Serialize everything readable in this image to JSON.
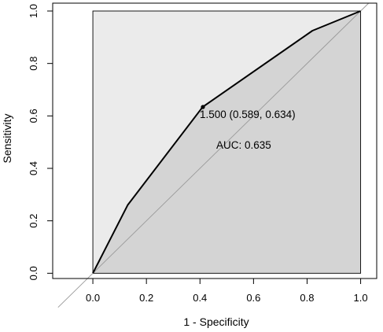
{
  "chart_data": {
    "type": "line",
    "title": "",
    "xlabel": "1 - Specificity",
    "ylabel": "Sensitivity",
    "xlim": [
      -0.15,
      1.06
    ],
    "ylim": [
      -0.02,
      1.03
    ],
    "x_ticks": [
      0.0,
      0.2,
      0.4,
      0.6,
      0.8,
      1.0
    ],
    "y_ticks": [
      0.0,
      0.2,
      0.4,
      0.6,
      0.8,
      1.0
    ],
    "x_tick_labels": [
      "0.0",
      "0.2",
      "0.4",
      "0.6",
      "0.8",
      "1.0"
    ],
    "y_tick_labels": [
      "0.0",
      "0.2",
      "0.4",
      "0.6",
      "0.8",
      "1.0"
    ],
    "grid": false,
    "series": [
      {
        "x": [
          0.0,
          0.03,
          0.13,
          0.41,
          0.82,
          1.0
        ],
        "y": [
          0.0,
          0.06,
          0.26,
          0.634,
          0.925,
          1.0
        ]
      }
    ],
    "threshold_point": {
      "x": 0.411,
      "y": 0.634
    },
    "annotations": {
      "threshold": "1.500 (0.589, 0.634)",
      "auc": "AUC: 0.635"
    },
    "colors": {
      "upper_fill": "#ebebeb",
      "auc_fill": "#d4d4d4",
      "roc_line": "#000000",
      "diagonal": "#9a9a9a",
      "frame": "#000000"
    }
  }
}
